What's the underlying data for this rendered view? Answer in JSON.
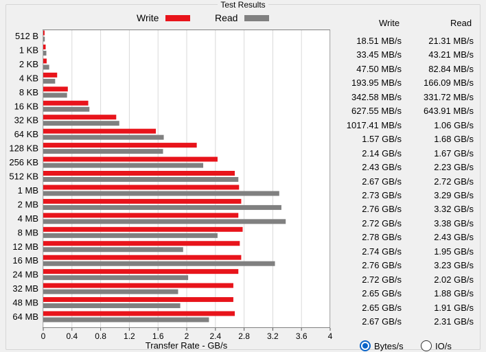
{
  "window": {
    "title": "Test Results"
  },
  "legend": {
    "write_label": "Write",
    "read_label": "Read",
    "write_color": "#e8141b",
    "read_color": "#808080"
  },
  "results_table": {
    "write_header": "Write",
    "read_header": "Read",
    "rows": [
      {
        "write": "18.51 MB/s",
        "read": "21.31 MB/s"
      },
      {
        "write": "33.45 MB/s",
        "read": "43.21 MB/s"
      },
      {
        "write": "47.50 MB/s",
        "read": "82.84 MB/s"
      },
      {
        "write": "193.95 MB/s",
        "read": "166.09 MB/s"
      },
      {
        "write": "342.58 MB/s",
        "read": "331.72 MB/s"
      },
      {
        "write": "627.55 MB/s",
        "read": "643.91 MB/s"
      },
      {
        "write": "1017.41 MB/s",
        "read": "1.06 GB/s"
      },
      {
        "write": "1.57 GB/s",
        "read": "1.68 GB/s"
      },
      {
        "write": "2.14 GB/s",
        "read": "1.67 GB/s"
      },
      {
        "write": "2.43 GB/s",
        "read": "2.23 GB/s"
      },
      {
        "write": "2.67 GB/s",
        "read": "2.72 GB/s"
      },
      {
        "write": "2.73 GB/s",
        "read": "3.29 GB/s"
      },
      {
        "write": "2.76 GB/s",
        "read": "3.32 GB/s"
      },
      {
        "write": "2.72 GB/s",
        "read": "3.38 GB/s"
      },
      {
        "write": "2.78 GB/s",
        "read": "2.43 GB/s"
      },
      {
        "write": "2.74 GB/s",
        "read": "1.95 GB/s"
      },
      {
        "write": "2.76 GB/s",
        "read": "3.23 GB/s"
      },
      {
        "write": "2.72 GB/s",
        "read": "2.02 GB/s"
      },
      {
        "write": "2.65 GB/s",
        "read": "1.88 GB/s"
      },
      {
        "write": "2.65 GB/s",
        "read": "1.91 GB/s"
      },
      {
        "write": "2.67 GB/s",
        "read": "2.31 GB/s"
      }
    ]
  },
  "units": {
    "bytes_label": "Bytes/s",
    "io_label": "IO/s",
    "selected": "Bytes/s"
  },
  "chart_data": {
    "type": "bar",
    "orientation": "horizontal",
    "categories": [
      "512 B",
      "1 KB",
      "2 KB",
      "4 KB",
      "8 KB",
      "16 KB",
      "32 KB",
      "64 KB",
      "128 KB",
      "256 KB",
      "512 KB",
      "1 MB",
      "2 MB",
      "4 MB",
      "8 MB",
      "12 MB",
      "16 MB",
      "24 MB",
      "32 MB",
      "48 MB",
      "64 MB"
    ],
    "series": [
      {
        "name": "Write",
        "color": "#e8141b",
        "values": [
          0.01851,
          0.03345,
          0.0475,
          0.19395,
          0.34258,
          0.62755,
          1.01741,
          1.57,
          2.14,
          2.43,
          2.67,
          2.73,
          2.76,
          2.72,
          2.78,
          2.74,
          2.76,
          2.72,
          2.65,
          2.65,
          2.67
        ]
      },
      {
        "name": "Read",
        "color": "#808080",
        "values": [
          0.02131,
          0.04321,
          0.08284,
          0.16609,
          0.33172,
          0.64391,
          1.06,
          1.68,
          1.67,
          2.23,
          2.72,
          3.29,
          3.32,
          3.38,
          2.43,
          1.95,
          3.23,
          2.02,
          1.88,
          1.91,
          2.31
        ]
      }
    ],
    "xlabel": "Transfer Rate - GB/s",
    "ylabel": "",
    "xlim": [
      0,
      4
    ],
    "xticks": [
      "0",
      "0.4",
      "0.8",
      "1.2",
      "1.6",
      "2",
      "2.4",
      "2.8",
      "3.2",
      "3.6",
      "4"
    ],
    "grid": "vertical",
    "legend": "top-center"
  }
}
